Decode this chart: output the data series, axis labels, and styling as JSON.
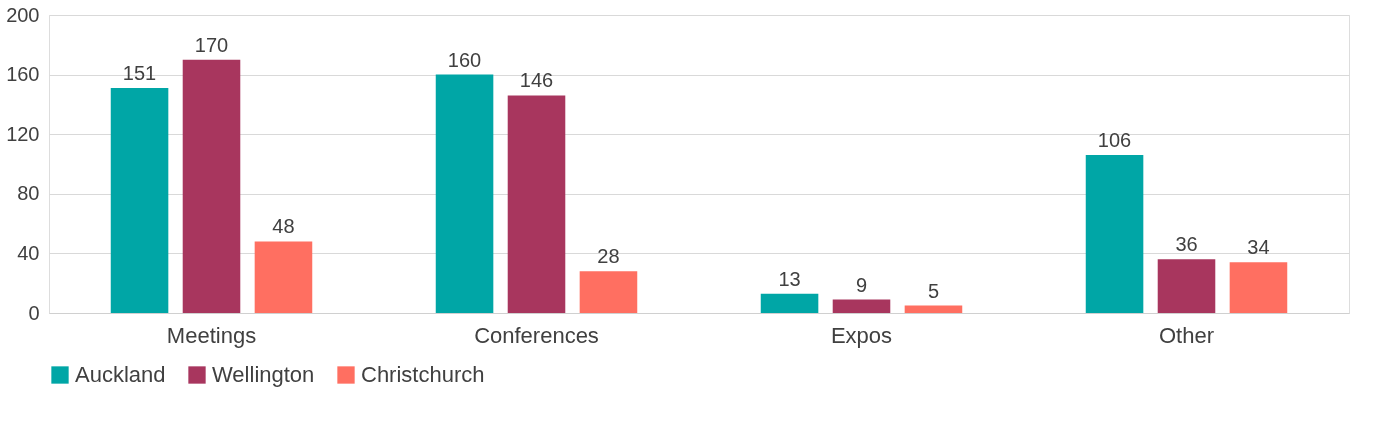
{
  "chart_data": {
    "type": "bar",
    "categories": [
      "Meetings",
      "Conferences",
      "Expos",
      "Other"
    ],
    "series": [
      {
        "name": "Auckland",
        "color": "#00a6a6",
        "values": [
          151,
          160,
          13,
          106
        ]
      },
      {
        "name": "Wellington",
        "color": "#a8365e",
        "values": [
          170,
          146,
          9,
          36
        ]
      },
      {
        "name": "Christchurch",
        "color": "#ff6f61",
        "values": [
          48,
          28,
          5,
          34
        ]
      }
    ],
    "ylim": [
      0,
      200
    ],
    "yticks": [
      0,
      40,
      80,
      120,
      160,
      200
    ],
    "grid": "y",
    "legend": "bottom",
    "data_labels": true
  }
}
